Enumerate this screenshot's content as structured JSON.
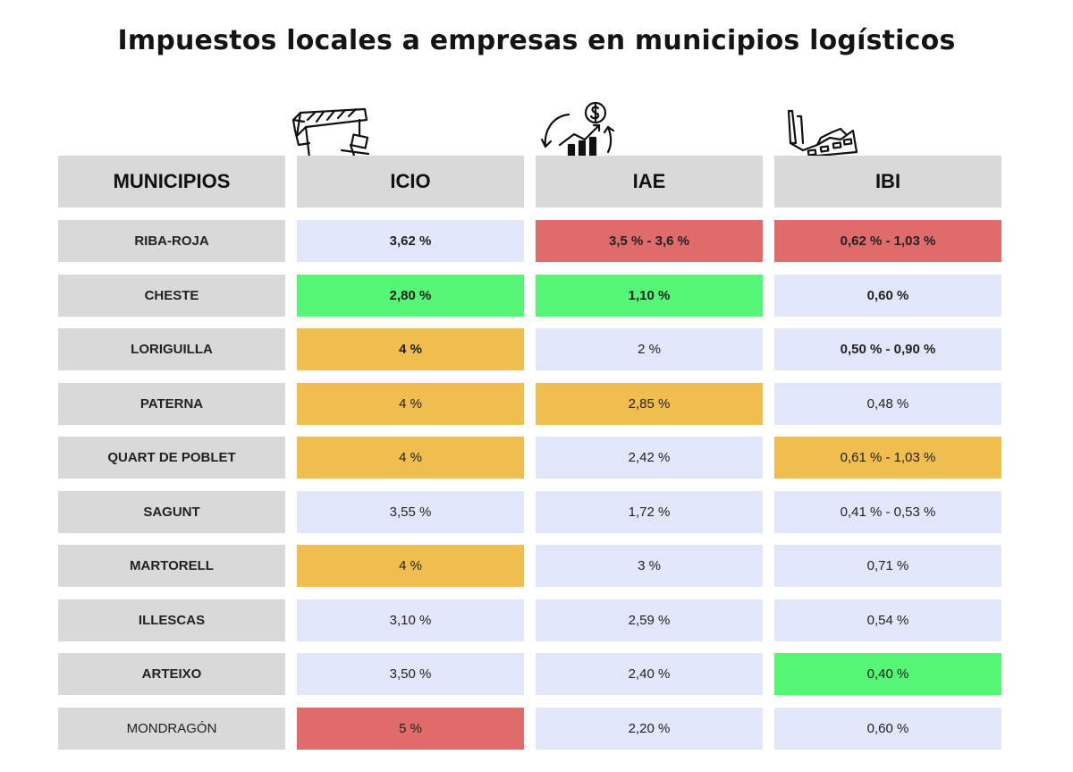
{
  "title": "Impuestos locales a empresas en municipios logísticos",
  "icons": [
    "crane-icon",
    "money-growth-icon",
    "factory-icon"
  ],
  "colors": {
    "header_bg": "#d9d9d9",
    "default_cell": "#e2e6fb",
    "red": "#df6b6b",
    "green": "#55f576",
    "orange": "#f0be4f"
  },
  "chart_data": {
    "type": "table",
    "columns": [
      "MUNICIPIOS",
      "ICIO",
      "IAE",
      "IBI"
    ],
    "rows": [
      {
        "municipio": "RIBA-ROJA",
        "icio": "3,62 %",
        "iae": "3,5  % - 3,6 %",
        "ibi": "0,62 % - 1,03 %",
        "icio_color": "default",
        "iae_color": "red",
        "ibi_color": "red",
        "icio_bold": true,
        "iae_bold": true,
        "ibi_bold": true,
        "muni_bold": true
      },
      {
        "municipio": "CHESTE",
        "icio": "2,80 %",
        "iae": "1,10 %",
        "ibi": "0,60 %",
        "icio_color": "green",
        "iae_color": "green",
        "ibi_color": "default",
        "icio_bold": true,
        "iae_bold": true,
        "ibi_bold": true,
        "muni_bold": true
      },
      {
        "municipio": "LORIGUILLA",
        "icio": "4 %",
        "iae": "2 %",
        "ibi": "0,50 % - 0,90 %",
        "icio_color": "orange",
        "iae_color": "default",
        "ibi_color": "default",
        "icio_bold": true,
        "iae_bold": false,
        "ibi_bold": true,
        "muni_bold": true
      },
      {
        "municipio": "PATERNA",
        "icio": "4 %",
        "iae": "2,85 %",
        "ibi": "0,48 %",
        "icio_color": "orange",
        "iae_color": "orange",
        "ibi_color": "default",
        "icio_bold": false,
        "iae_bold": false,
        "ibi_bold": false,
        "muni_bold": true
      },
      {
        "municipio": "QUART  DE POBLET",
        "icio": "4 %",
        "iae": "2,42 %",
        "ibi": "0,61 % - 1,03 %",
        "icio_color": "orange",
        "iae_color": "default",
        "ibi_color": "orange",
        "icio_bold": false,
        "iae_bold": false,
        "ibi_bold": false,
        "muni_bold": true
      },
      {
        "municipio": "SAGUNT",
        "icio": "3,55 %",
        "iae": "1,72 %",
        "ibi": "0,41 % - 0,53 %",
        "icio_color": "default",
        "iae_color": "default",
        "ibi_color": "default",
        "icio_bold": false,
        "iae_bold": false,
        "ibi_bold": false,
        "muni_bold": true
      },
      {
        "municipio": "MARTORELL",
        "icio": "4 %",
        "iae": "3 %",
        "ibi": "0,71 %",
        "icio_color": "orange",
        "iae_color": "default",
        "ibi_color": "default",
        "icio_bold": false,
        "iae_bold": false,
        "ibi_bold": false,
        "muni_bold": true
      },
      {
        "municipio": "ILLESCAS",
        "icio": "3,10 %",
        "iae": "2,59 %",
        "ibi": "0,54 %",
        "icio_color": "default",
        "iae_color": "default",
        "ibi_color": "default",
        "icio_bold": false,
        "iae_bold": false,
        "ibi_bold": false,
        "muni_bold": true
      },
      {
        "municipio": "ARTEIXO",
        "icio": "3,50 %",
        "iae": "2,40 %",
        "ibi": "0,40 %",
        "icio_color": "default",
        "iae_color": "default",
        "ibi_color": "green",
        "icio_bold": false,
        "iae_bold": false,
        "ibi_bold": false,
        "muni_bold": true
      },
      {
        "municipio": "MONDRAGÓN",
        "icio": "5 %",
        "iae": "2,20 %",
        "ibi": "0,60 %",
        "icio_color": "red",
        "iae_color": "default",
        "ibi_color": "default",
        "icio_bold": false,
        "iae_bold": false,
        "ibi_bold": false,
        "muni_bold": false
      }
    ]
  }
}
